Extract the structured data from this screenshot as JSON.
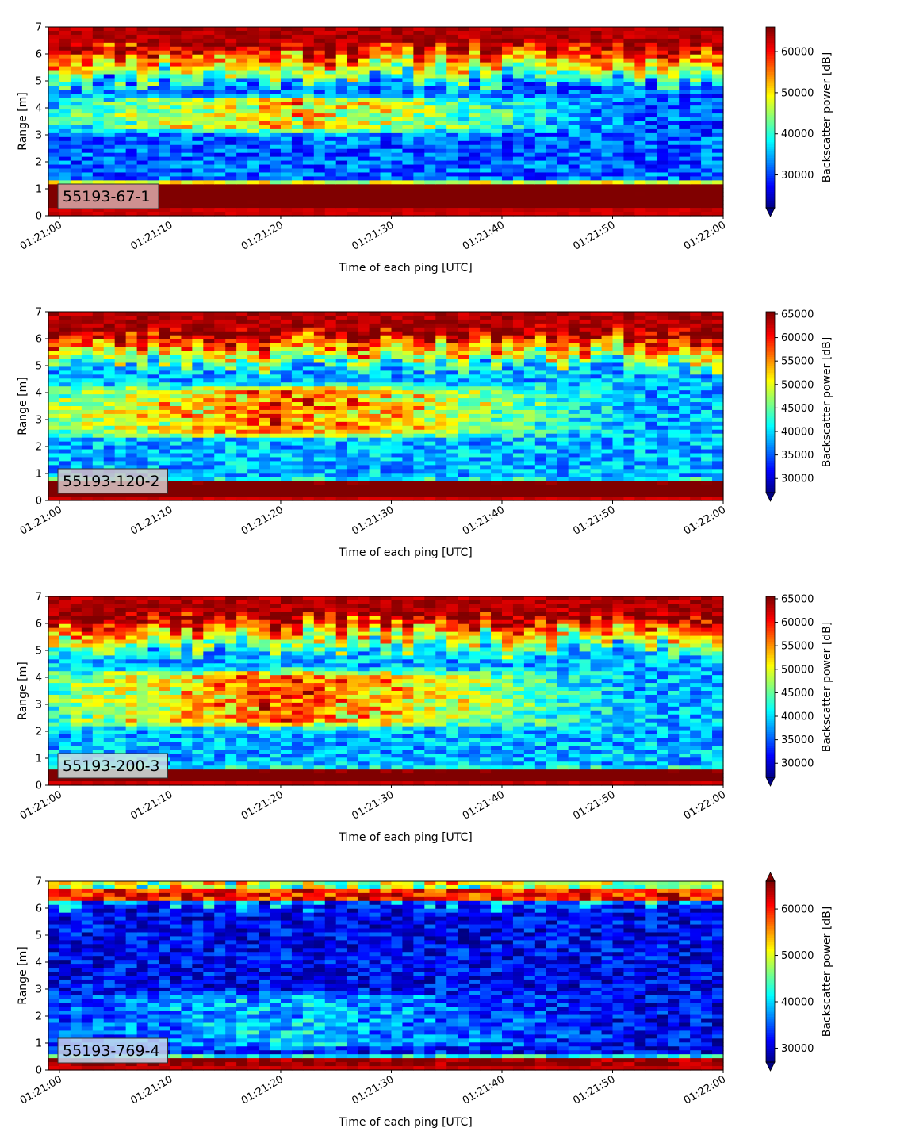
{
  "chart_data": [
    {
      "type": "heatmap",
      "label": "55193-67-1",
      "label_bg": "#dcaaaa",
      "xlabel": "Time of each ping [UTC]",
      "ylabel": "Range [m]",
      "colorbar_label": "Backscatter power [dB]",
      "xticks": [
        "01:21:00",
        "01:21:10",
        "01:21:20",
        "01:21:30",
        "01:21:40",
        "01:21:50",
        "01:22:00"
      ],
      "xlim": [
        "01:20:59",
        "01:22:00"
      ],
      "yticks": [
        0,
        1,
        2,
        3,
        4,
        5,
        6,
        7
      ],
      "ylim": [
        0,
        7
      ],
      "clim": [
        22000,
        66000
      ],
      "colorbar_ticks": [
        30000,
        40000,
        50000,
        60000
      ],
      "colorbar_extend": "min",
      "profile": {
        "floor_top": 1.1,
        "floor_base": 0.3,
        "upper_cloud": [
          3.3,
          4.2
        ],
        "upper_fade": 0.55,
        "surface_start": 4.9,
        "noise_seed": 11,
        "base_level": 0.22
      }
    },
    {
      "type": "heatmap",
      "label": "55193-120-2",
      "label_bg": "#d8c8c8",
      "xlabel": "Time of each ping [UTC]",
      "ylabel": "Range [m]",
      "colorbar_label": "Backscatter power [dB]",
      "xticks": [
        "01:21:00",
        "01:21:10",
        "01:21:20",
        "01:21:30",
        "01:21:40",
        "01:21:50",
        "01:22:00"
      ],
      "xlim": [
        "01:20:59",
        "01:22:00"
      ],
      "yticks": [
        0,
        1,
        2,
        3,
        4,
        5,
        6,
        7
      ],
      "ylim": [
        0,
        7
      ],
      "clim": [
        27000,
        65500
      ],
      "colorbar_ticks": [
        30000,
        35000,
        40000,
        45000,
        50000,
        55000,
        60000,
        65000
      ],
      "colorbar_extend": "min",
      "profile": {
        "floor_top": 0.6,
        "floor_base": 0.2,
        "upper_cloud": [
          2.6,
          4.0
        ],
        "upper_fade": 0.6,
        "surface_start": 5.0,
        "noise_seed": 23,
        "base_level": 0.3
      }
    },
    {
      "type": "heatmap",
      "label": "55193-200-3",
      "label_bg": "#cfe4e2",
      "xlabel": "Time of each ping [UTC]",
      "ylabel": "Range [m]",
      "colorbar_label": "Backscatter power [dB]",
      "xticks": [
        "01:21:00",
        "01:21:10",
        "01:21:20",
        "01:21:30",
        "01:21:40",
        "01:21:50",
        "01:22:00"
      ],
      "xlim": [
        "01:20:59",
        "01:22:00"
      ],
      "yticks": [
        0,
        1,
        2,
        3,
        4,
        5,
        6,
        7
      ],
      "ylim": [
        0,
        7
      ],
      "clim": [
        27000,
        65500
      ],
      "colorbar_ticks": [
        30000,
        35000,
        40000,
        45000,
        50000,
        55000,
        60000,
        65000
      ],
      "colorbar_extend": "min",
      "profile": {
        "floor_top": 0.45,
        "floor_base": 0.1,
        "upper_cloud": [
          2.4,
          4.0
        ],
        "upper_fade": 0.6,
        "surface_start": 5.0,
        "noise_seed": 37,
        "base_level": 0.3
      }
    },
    {
      "type": "heatmap",
      "label": "55193-769-4",
      "label_bg": "#c8d8ee",
      "xlabel": "Time of each ping [UTC]",
      "ylabel": "Range [m]",
      "colorbar_label": "Backscatter power [dB]",
      "xticks": [
        "01:21:00",
        "01:21:10",
        "01:21:20",
        "01:21:30",
        "01:21:40",
        "01:21:50",
        "01:22:00"
      ],
      "xlim": [
        "01:20:59",
        "01:22:00"
      ],
      "yticks": [
        0,
        1,
        2,
        3,
        4,
        5,
        6,
        7
      ],
      "ylim": [
        0,
        7
      ],
      "clim": [
        27000,
        66000
      ],
      "colorbar_ticks": [
        30000,
        40000,
        50000,
        60000
      ],
      "colorbar_extend": "both",
      "profile": {
        "floor_top": 0.35,
        "floor_base": 0.15,
        "upper_cloud": [
          1.0,
          2.6
        ],
        "upper_fade": 0.25,
        "surface_start": 6.2,
        "noise_seed": 53,
        "base_level": 0.12
      }
    }
  ]
}
